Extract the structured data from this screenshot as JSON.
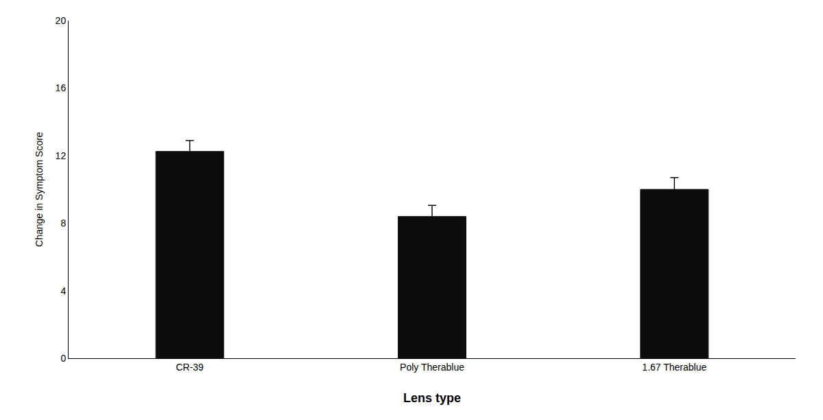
{
  "chart_data": {
    "type": "bar",
    "categories": [
      "CR-39",
      "Poly Therablue",
      "1.67 Therablue"
    ],
    "values": [
      12.25,
      8.4,
      10.0
    ],
    "errors": [
      0.65,
      0.65,
      0.7
    ],
    "color": "#0d0d0d",
    "xlabel": "Lens type",
    "ylabel": "Change in Symptom Score",
    "ylim": [
      0,
      20
    ],
    "yticks": [
      0,
      4,
      8,
      12,
      16,
      20
    ],
    "grid": false
  }
}
